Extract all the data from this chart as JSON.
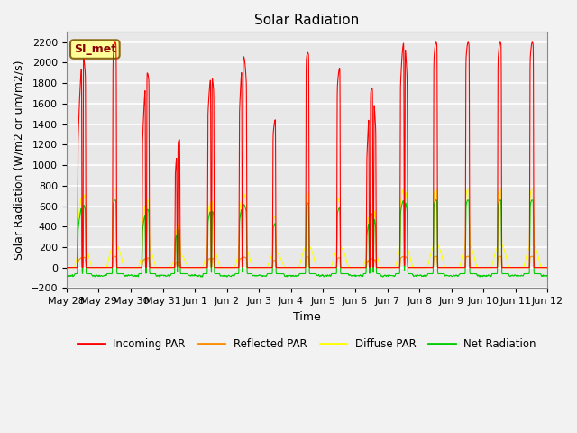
{
  "title": "Solar Radiation",
  "ylabel": "Solar Radiation (W/m2 or um/m2/s)",
  "xlabel": "Time",
  "ylim": [
    -200,
    2300
  ],
  "yticks": [
    -200,
    0,
    200,
    400,
    600,
    800,
    1000,
    1200,
    1400,
    1600,
    1800,
    2000,
    2200
  ],
  "x_tick_labels": [
    "May 28",
    "May 29",
    "May 30",
    "May 31",
    "Jun 1",
    "Jun 2",
    "Jun 3",
    "Jun 4",
    "Jun 5",
    "Jun 6",
    "Jun 7",
    "Jun 8",
    "Jun 9",
    "Jun 10",
    "Jun 11",
    "Jun 12"
  ],
  "annotation_text": "SI_met",
  "annotation_color": "#8B0000",
  "annotation_bg": "#FFFF99",
  "annotation_border": "#8B6914",
  "colors": {
    "incoming": "#FF0000",
    "reflected": "#FF8C00",
    "diffuse": "#FFFF00",
    "net": "#00CC00"
  },
  "legend": [
    "Incoming PAR",
    "Reflected PAR",
    "Diffuse PAR",
    "Net Radiation"
  ],
  "background_color": "#E8E8E8",
  "grid_color": "#FFFFFF",
  "title_fontsize": 11,
  "axis_fontsize": 9,
  "tick_fontsize": 8
}
